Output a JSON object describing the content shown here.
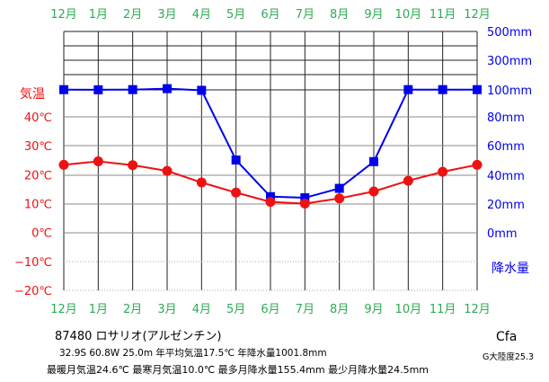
{
  "chart_data": {
    "type": "line",
    "months": [
      "12月",
      "1月",
      "2月",
      "3月",
      "4月",
      "5月",
      "6月",
      "7月",
      "8月",
      "9月",
      "10月",
      "11月",
      "12月"
    ],
    "temperature": {
      "label": "気温",
      "unit": "℃",
      "ticks": [
        "40℃",
        "30℃",
        "20℃",
        "10℃",
        "0℃",
        "−10℃",
        "−20℃"
      ],
      "tick_values": [
        40,
        30,
        20,
        10,
        0,
        -10,
        -20
      ],
      "ylim": [
        -20,
        40
      ],
      "values": [
        23.4,
        24.6,
        23.3,
        21.3,
        17.3,
        13.8,
        10.6,
        10.0,
        11.8,
        14.2,
        17.9,
        21.0,
        23.4
      ],
      "color": "#ee1111"
    },
    "precipitation": {
      "label": "降水量",
      "unit": "mm",
      "ticks": [
        "500mm",
        "300mm",
        "100mm",
        "80mm",
        "60mm",
        "40mm",
        "20mm",
        "0mm"
      ],
      "ylim": [
        0,
        500
      ],
      "values": [
        101.6,
        100.6,
        101.8,
        108.2,
        99.7,
        50.9,
        25.3,
        24.5,
        31.1,
        49.8,
        101.8,
        101.8,
        101.6
      ],
      "color": "#0000ee"
    },
    "month_label_color": "#2eaa55"
  },
  "station": "87480 ロサリオ(アルゼンチン)",
  "info_line1": "32.9S 60.8W 25.0m 年平均気温17.5℃ 年降水量1001.8mm",
  "info_line2": "最暖月気温24.6℃ 最寒月気温10.0℃ 最多月降水量155.4mm 最少月降水量24.5mm",
  "climate": "Cfa",
  "continentality": "G大陸度25.3"
}
